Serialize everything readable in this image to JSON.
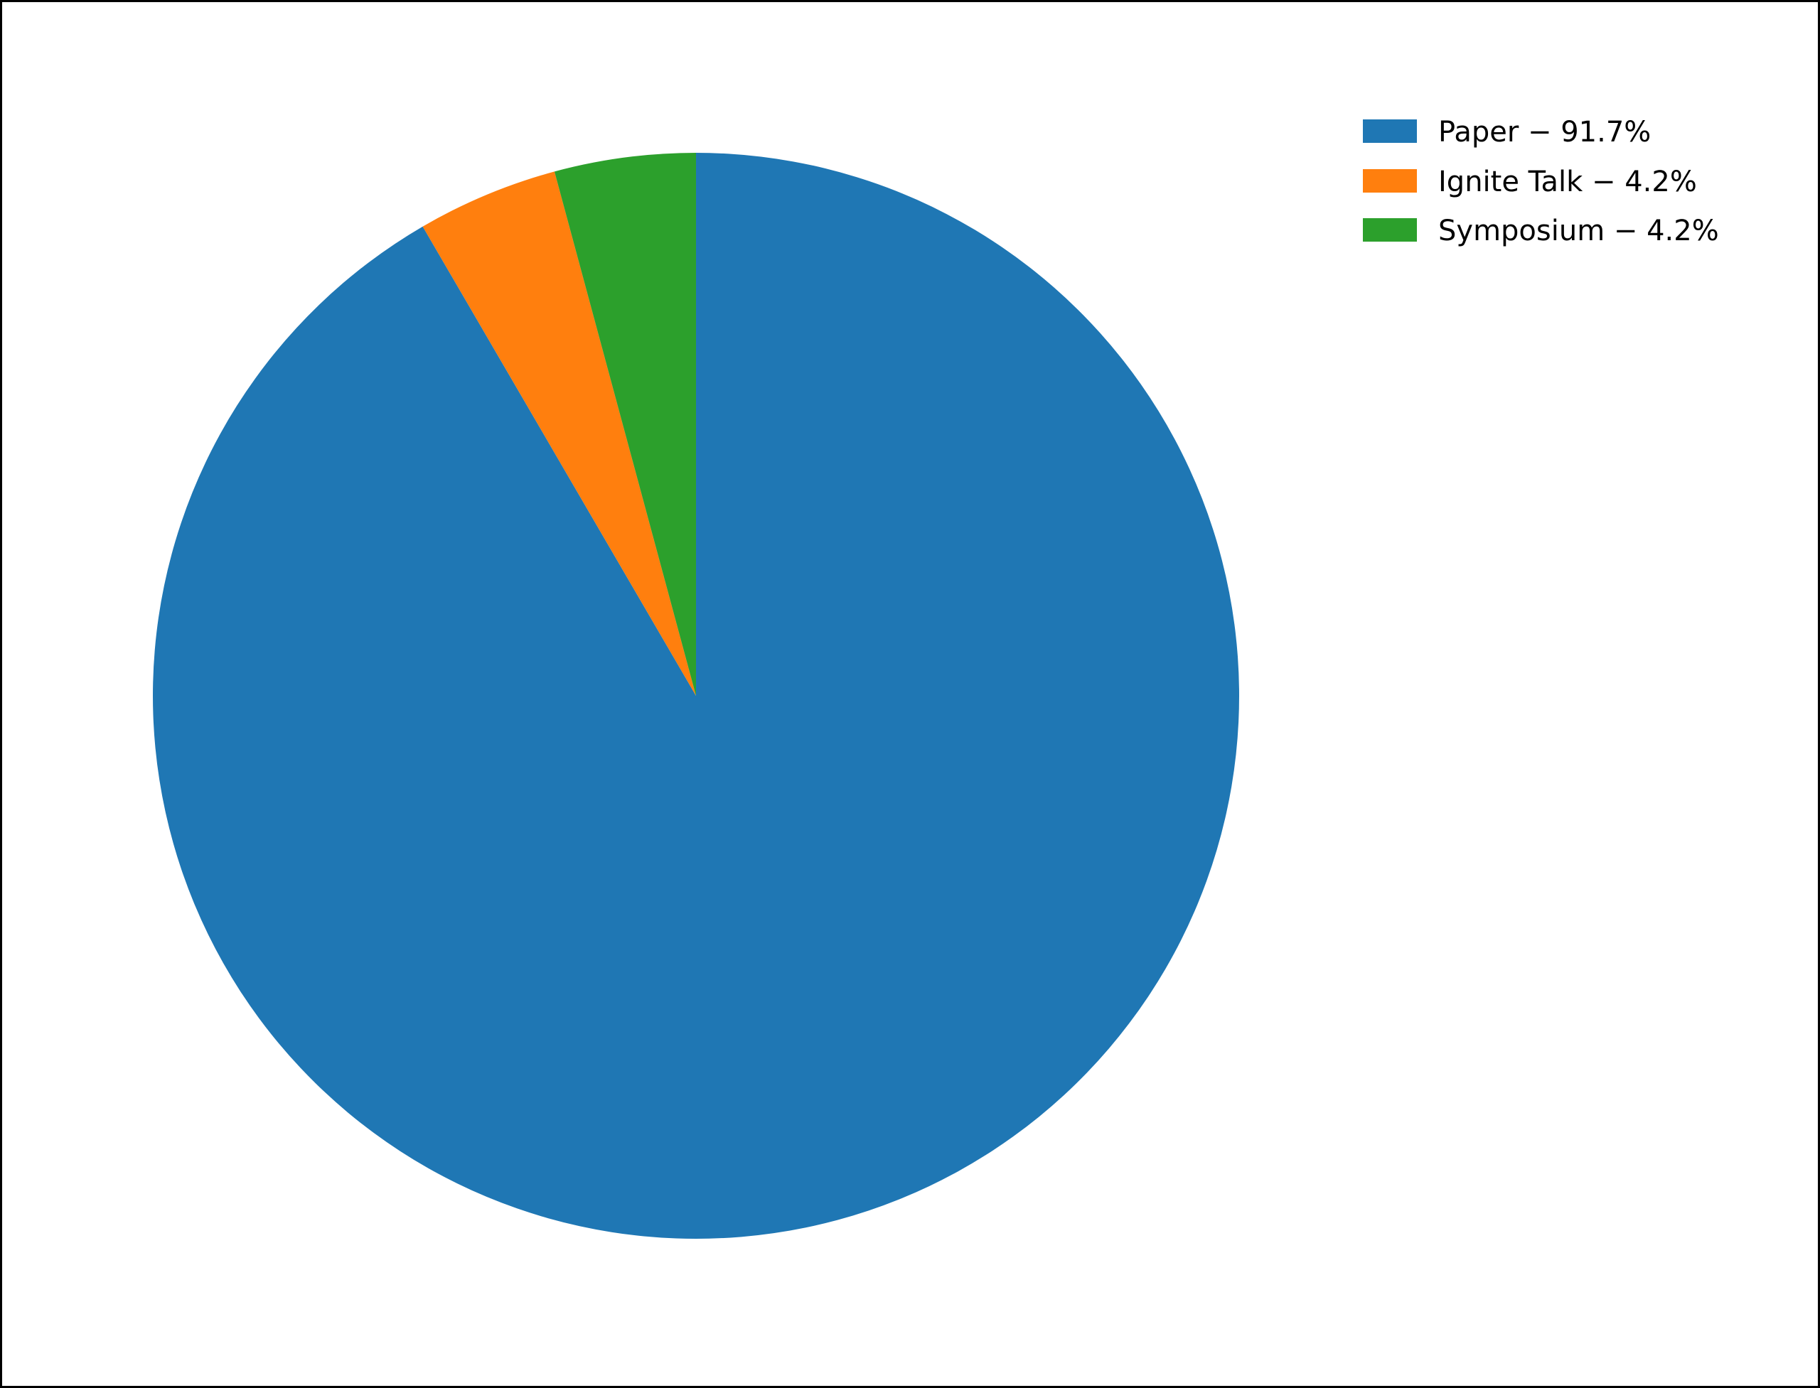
{
  "chart_data": {
    "type": "pie",
    "title": "",
    "start_angle_deg": 90,
    "direction": "clockwise",
    "slices": [
      {
        "label": "Paper",
        "value": 91.7,
        "color": "#1f77b4",
        "legend": "Paper − 91.7%"
      },
      {
        "label": "Ignite Talk",
        "value": 4.2,
        "color": "#ff7f0e",
        "legend": "Ignite Talk − 4.2%"
      },
      {
        "label": "Symposium",
        "value": 4.2,
        "color": "#2ca02c",
        "legend": "Symposium − 4.2%"
      }
    ],
    "legend_position": "top-right"
  }
}
